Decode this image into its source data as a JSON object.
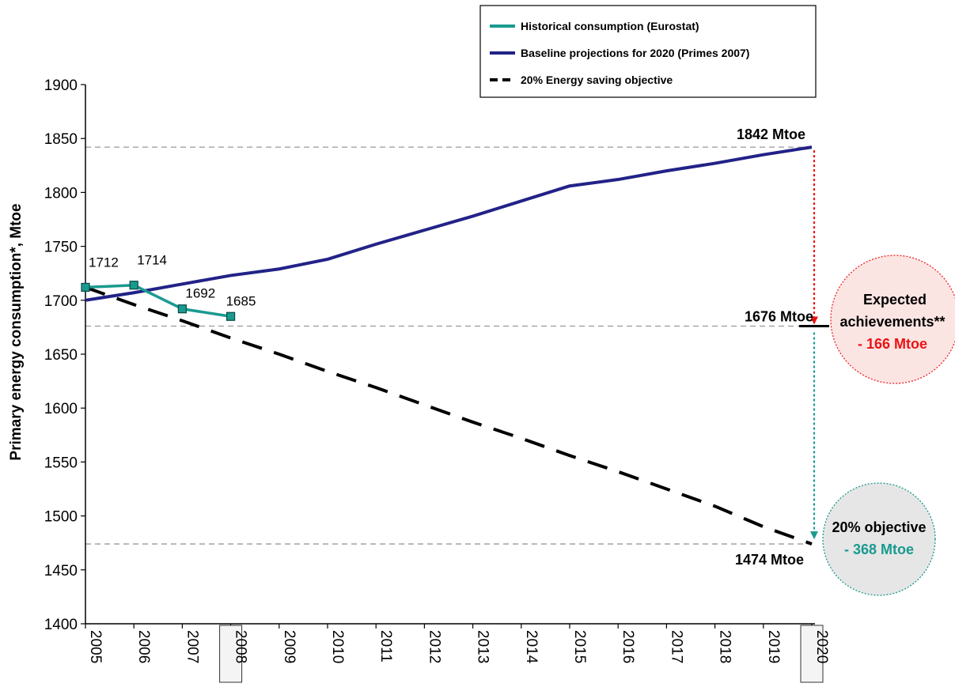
{
  "chart_data": {
    "type": "line",
    "ylabel": "Primary energy consumption*, Mtoe",
    "ylim": [
      1400,
      1900
    ],
    "yticks": [
      1400,
      1450,
      1500,
      1550,
      1600,
      1650,
      1700,
      1750,
      1800,
      1850,
      1900
    ],
    "x": [
      "2005",
      "2006",
      "2007",
      "2008",
      "2009",
      "2010",
      "2011",
      "2012",
      "2013",
      "2014",
      "2015",
      "2016",
      "2017",
      "2018",
      "2019",
      "2020"
    ],
    "boxed_x_labels": [
      "2008",
      "2020"
    ],
    "legend_position": "top-right",
    "series": [
      {
        "name": "Historical consumption (Eurostat)",
        "color": "#1a9a8f",
        "style": "solid-markers",
        "x": [
          "2005",
          "2006",
          "2007",
          "2008"
        ],
        "values": [
          1712,
          1714,
          1692,
          1685
        ],
        "labels": [
          "1712",
          "1714",
          "1692",
          "1685"
        ]
      },
      {
        "name": "Baseline projections for 2020 (Primes 2007)",
        "color": "#222288",
        "style": "solid",
        "x": [
          "2005",
          "2006",
          "2007",
          "2008",
          "2009",
          "2010",
          "2011",
          "2012",
          "2013",
          "2014",
          "2015",
          "2016",
          "2017",
          "2018",
          "2019",
          "2020"
        ],
        "values": [
          1700,
          1707,
          1715,
          1723,
          1729,
          1738,
          1752,
          1765,
          1778,
          1792,
          1806,
          1812,
          1820,
          1827,
          1835,
          1842
        ]
      },
      {
        "name": "20% Energy saving objective",
        "color": "#000000",
        "style": "dashed",
        "x": [
          "2005",
          "2006",
          "2007",
          "2008",
          "2009",
          "2010",
          "2011",
          "2012",
          "2013",
          "2014",
          "2015",
          "2016",
          "2017",
          "2018",
          "2019",
          "2020"
        ],
        "values": [
          1712,
          1696,
          1681,
          1665,
          1650,
          1634,
          1619,
          1603,
          1587,
          1572,
          1556,
          1541,
          1525,
          1509,
          1490,
          1474
        ]
      }
    ],
    "reference_lines": [
      {
        "value": 1842,
        "label": "1842 Mtoe"
      },
      {
        "value": 1676,
        "label": "1676 Mtoe"
      },
      {
        "value": 1474,
        "label": "1474 Mtoe"
      }
    ],
    "callouts": [
      {
        "line1": "Expected",
        "line2": "achievements**",
        "value": "- 166 Mtoe",
        "value_color": "#ee1111",
        "border_color": "#ee2222",
        "fill": "#fbe5e3"
      },
      {
        "line1": "20% objective",
        "value": "- 368 Mtoe",
        "value_color": "#1a9a8f",
        "border_color": "#1a9a8f",
        "fill": "#e6e6e6"
      }
    ]
  }
}
